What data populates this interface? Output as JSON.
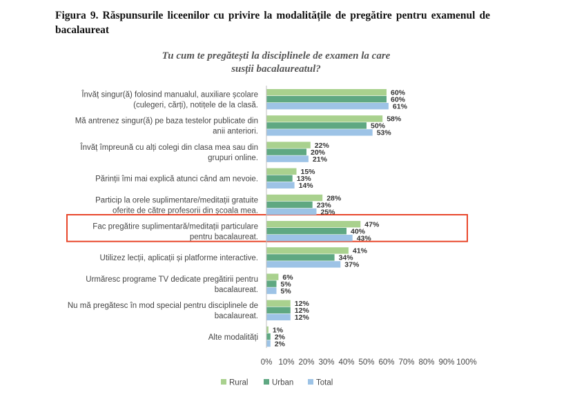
{
  "figure": {
    "caption_label": "Figura 9.",
    "caption_text": "Răspunsurile liceenilor cu privire la modalitățile de pregătire pentru examenul de bacalaureat"
  },
  "chart_data": {
    "type": "bar",
    "orientation": "horizontal",
    "title_lines": [
      "Tu cum te pregătești la disciplinele de examen la care",
      "susții bacalaureatul?"
    ],
    "categories": [
      [
        "Învăț singur(ă) folosind manualul, auxiliare școlare",
        "(culegeri, cărți), notițele de la clasă."
      ],
      [
        "Mă antrenez singur(ă) pe baza testelor publicate din",
        "anii anteriori."
      ],
      [
        "Învăț împreună cu alți colegi din clasa mea sau din",
        "grupuri online."
      ],
      [
        "Părinții îmi mai explică atunci când am nevoie."
      ],
      [
        "Particip la orele suplimentare/meditații gratuite",
        "oferite de către profesorii din școala mea."
      ],
      [
        "Fac pregătire suplimentară/meditații particulare",
        "pentru bacalaureat."
      ],
      [
        "Utilizez lecții, aplicații și platforme interactive."
      ],
      [
        "Urmăresc programe TV dedicate pregătirii pentru",
        "bacalaureat."
      ],
      [
        "Nu mă pregătesc în mod special pentru disciplinele de",
        "bacalaureat."
      ],
      [
        "Alte modalități"
      ]
    ],
    "series": [
      {
        "name": "Rural",
        "color": "#a9d18e",
        "values": [
          60,
          58,
          22,
          15,
          28,
          47,
          41,
          6,
          12,
          1
        ]
      },
      {
        "name": "Urban",
        "color": "#5fa882",
        "values": [
          60,
          50,
          20,
          13,
          23,
          40,
          34,
          5,
          12,
          2
        ]
      },
      {
        "name": "Total",
        "color": "#9dc3e6",
        "values": [
          61,
          53,
          21,
          14,
          25,
          43,
          37,
          5,
          12,
          2
        ]
      }
    ],
    "value_suffix": "%",
    "xlim": [
      0,
      100
    ],
    "xticks": [
      "0%",
      "10%",
      "20%",
      "30%",
      "40%",
      "50%",
      "60%",
      "70%",
      "80%",
      "90%",
      "100%"
    ],
    "grid": false,
    "legend_position": "bottom",
    "highlighted_category_index": 5,
    "highlight_color": "#e8462a"
  }
}
